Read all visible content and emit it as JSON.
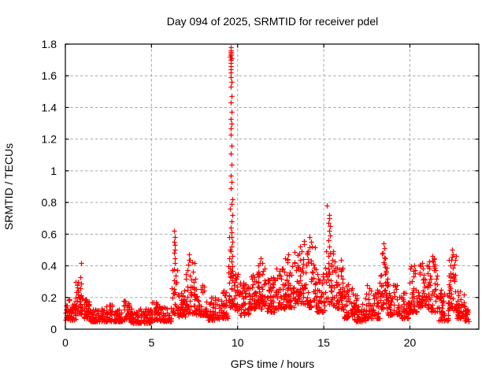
{
  "window": {
    "background": "#ffffff"
  },
  "chart_data": {
    "type": "scatter",
    "title": "Day 094 of 2025, SRMTID for receiver pdel",
    "xlabel": "GPS time / hours",
    "ylabel": "SRMTID / TECUs",
    "xlim": [
      0,
      24
    ],
    "ylim": [
      0,
      1.8
    ],
    "xticks": [
      0,
      5,
      10,
      15,
      20
    ],
    "xtick_labels": [
      "0",
      "5",
      "10",
      "15",
      "20"
    ],
    "yticks": [
      0,
      0.2,
      0.4,
      0.6,
      0.8,
      1,
      1.2,
      1.4,
      1.6,
      1.8
    ],
    "ytick_labels": [
      "0",
      "0.2",
      "0.4",
      "0.6",
      "0.8",
      "1",
      "1.2",
      "1.4",
      "1.6",
      "1.8"
    ],
    "grid": true,
    "grid_color": "#a6a6a6",
    "axis_color": "#000000",
    "legend": "none",
    "marker": {
      "glyph": "plus",
      "color": "#ff0000",
      "size": 6.4
    },
    "seed": 2025,
    "bands": [
      [
        0.0,
        0.35,
        30,
        0.06,
        0.2,
        1.6
      ],
      [
        0.35,
        0.6,
        22,
        0.06,
        0.16,
        1.9
      ],
      [
        0.55,
        0.85,
        30,
        0.1,
        0.3,
        1.5
      ],
      [
        0.85,
        1.05,
        14,
        0.09,
        0.26,
        1.6
      ],
      [
        1.05,
        1.4,
        28,
        0.07,
        0.22,
        2.0
      ],
      [
        1.4,
        2.3,
        75,
        0.05,
        0.13,
        2.0
      ],
      [
        2.3,
        2.75,
        35,
        0.05,
        0.16,
        2.1
      ],
      [
        2.75,
        3.35,
        45,
        0.05,
        0.14,
        2.1
      ],
      [
        3.35,
        3.75,
        32,
        0.06,
        0.18,
        2.1
      ],
      [
        3.75,
        4.95,
        90,
        0.04,
        0.13,
        2.0
      ],
      [
        4.95,
        5.45,
        38,
        0.06,
        0.17,
        2.1
      ],
      [
        5.45,
        6.15,
        50,
        0.05,
        0.15,
        2.1
      ],
      [
        6.15,
        6.55,
        24,
        0.1,
        0.38,
        1.4
      ],
      [
        6.55,
        7.0,
        38,
        0.08,
        0.26,
        1.8
      ],
      [
        7.0,
        7.55,
        48,
        0.1,
        0.44,
        1.9
      ],
      [
        7.55,
        8.1,
        42,
        0.09,
        0.28,
        2.0
      ],
      [
        8.1,
        8.95,
        62,
        0.06,
        0.2,
        2.0
      ],
      [
        8.95,
        9.45,
        40,
        0.07,
        0.26,
        1.8
      ],
      [
        9.45,
        9.8,
        30,
        0.14,
        0.4,
        1.3
      ],
      [
        9.8,
        10.15,
        28,
        0.12,
        0.35,
        1.6
      ],
      [
        10.15,
        10.65,
        45,
        0.09,
        0.3,
        1.8
      ],
      [
        10.65,
        11.15,
        45,
        0.13,
        0.36,
        1.8
      ],
      [
        11.15,
        11.65,
        48,
        0.13,
        0.44,
        1.9
      ],
      [
        11.65,
        12.15,
        45,
        0.11,
        0.34,
        1.8
      ],
      [
        12.15,
        12.75,
        50,
        0.13,
        0.41,
        1.8
      ],
      [
        12.75,
        13.25,
        50,
        0.14,
        0.46,
        1.8
      ],
      [
        13.25,
        13.85,
        55,
        0.16,
        0.5,
        1.8
      ],
      [
        13.85,
        14.55,
        55,
        0.14,
        0.56,
        1.9
      ],
      [
        14.55,
        15.05,
        40,
        0.11,
        0.35,
        1.8
      ],
      [
        15.05,
        15.55,
        36,
        0.16,
        0.52,
        1.5
      ],
      [
        15.55,
        16.15,
        48,
        0.13,
        0.45,
        1.8
      ],
      [
        16.15,
        16.75,
        45,
        0.07,
        0.3,
        1.9
      ],
      [
        16.75,
        17.45,
        55,
        0.05,
        0.22,
        1.9
      ],
      [
        17.45,
        18.25,
        56,
        0.07,
        0.28,
        1.9
      ],
      [
        18.25,
        18.7,
        42,
        0.13,
        0.48,
        1.6
      ],
      [
        18.7,
        19.45,
        50,
        0.09,
        0.33,
        1.9
      ],
      [
        19.45,
        19.95,
        38,
        0.07,
        0.24,
        1.9
      ],
      [
        19.95,
        20.45,
        42,
        0.11,
        0.42,
        1.8
      ],
      [
        20.45,
        21.05,
        48,
        0.14,
        0.42,
        1.7
      ],
      [
        21.05,
        21.65,
        48,
        0.11,
        0.45,
        1.8
      ],
      [
        21.65,
        22.25,
        45,
        0.05,
        0.27,
        1.9
      ],
      [
        22.25,
        22.7,
        42,
        0.12,
        0.47,
        1.6
      ],
      [
        22.7,
        23.15,
        38,
        0.07,
        0.24,
        1.8
      ],
      [
        23.15,
        23.4,
        24,
        0.05,
        0.15,
        1.7
      ]
    ],
    "spikes": [
      [
        0.9,
        0.42
      ],
      [
        0.88,
        0.33
      ],
      [
        0.92,
        0.29
      ],
      [
        0.86,
        0.26
      ],
      [
        6.33,
        0.62
      ],
      [
        6.35,
        0.58
      ],
      [
        6.32,
        0.55
      ],
      [
        6.36,
        0.53
      ],
      [
        6.34,
        0.5
      ],
      [
        6.33,
        0.48
      ],
      [
        6.37,
        0.45
      ],
      [
        6.35,
        0.42
      ],
      [
        6.3,
        0.38
      ],
      [
        6.38,
        0.34
      ],
      [
        6.41,
        0.29
      ],
      [
        7.18,
        0.47
      ],
      [
        7.24,
        0.44
      ],
      [
        7.12,
        0.41
      ],
      [
        9.6,
        1.78
      ],
      [
        9.58,
        1.76
      ],
      [
        9.62,
        1.75
      ],
      [
        9.59,
        1.74
      ],
      [
        9.61,
        1.73
      ],
      [
        9.57,
        1.72
      ],
      [
        9.63,
        1.71
      ],
      [
        9.6,
        1.7
      ],
      [
        9.58,
        1.68
      ],
      [
        9.62,
        1.66
      ],
      [
        9.59,
        1.64
      ],
      [
        9.61,
        1.62
      ],
      [
        9.6,
        1.59
      ],
      [
        9.63,
        1.56
      ],
      [
        9.58,
        1.53
      ],
      [
        9.64,
        1.47
      ],
      [
        9.61,
        1.43
      ],
      [
        9.65,
        1.37
      ],
      [
        9.6,
        1.33
      ],
      [
        9.63,
        1.3
      ],
      [
        9.59,
        1.27
      ],
      [
        9.62,
        1.23
      ],
      [
        9.64,
        1.16
      ],
      [
        9.61,
        1.11
      ],
      [
        9.66,
        1.04
      ],
      [
        9.62,
        0.97
      ],
      [
        9.65,
        0.93
      ],
      [
        9.6,
        0.89
      ],
      [
        9.67,
        0.82
      ],
      [
        9.63,
        0.79
      ],
      [
        9.56,
        0.76
      ],
      [
        9.68,
        0.72
      ],
      [
        9.64,
        0.68
      ],
      [
        9.61,
        0.64
      ],
      [
        9.66,
        0.61
      ],
      [
        9.63,
        0.58
      ],
      [
        9.69,
        0.55
      ],
      [
        9.65,
        0.52
      ],
      [
        9.62,
        0.49
      ],
      [
        9.67,
        0.46
      ],
      [
        9.64,
        0.43
      ],
      [
        9.7,
        0.4
      ],
      [
        9.66,
        0.37
      ],
      [
        9.72,
        0.34
      ],
      [
        9.68,
        0.31
      ],
      [
        9.52,
        0.58
      ],
      [
        9.5,
        0.45
      ],
      [
        9.48,
        0.36
      ],
      [
        9.54,
        0.5
      ],
      [
        11.33,
        0.45
      ],
      [
        11.29,
        0.42
      ],
      [
        12.95,
        0.47
      ],
      [
        12.9,
        0.44
      ],
      [
        13.6,
        0.52
      ],
      [
        13.72,
        0.49
      ],
      [
        14.18,
        0.58
      ],
      [
        14.25,
        0.55
      ],
      [
        14.3,
        0.52
      ],
      [
        14.1,
        0.49
      ],
      [
        15.18,
        0.78
      ],
      [
        15.3,
        0.72
      ],
      [
        15.32,
        0.7
      ],
      [
        15.28,
        0.67
      ],
      [
        15.34,
        0.65
      ],
      [
        15.31,
        0.62
      ],
      [
        15.36,
        0.59
      ],
      [
        15.27,
        0.56
      ],
      [
        16.0,
        0.44
      ],
      [
        18.45,
        0.54
      ],
      [
        18.5,
        0.51
      ],
      [
        18.42,
        0.48
      ],
      [
        18.56,
        0.45
      ],
      [
        20.7,
        0.42
      ],
      [
        21.3,
        0.46
      ],
      [
        21.35,
        0.43
      ],
      [
        22.45,
        0.5
      ],
      [
        22.5,
        0.47
      ],
      [
        22.42,
        0.44
      ],
      [
        22.56,
        0.41
      ],
      [
        23.25,
        0.12
      ],
      [
        23.3,
        0.1
      ]
    ]
  }
}
